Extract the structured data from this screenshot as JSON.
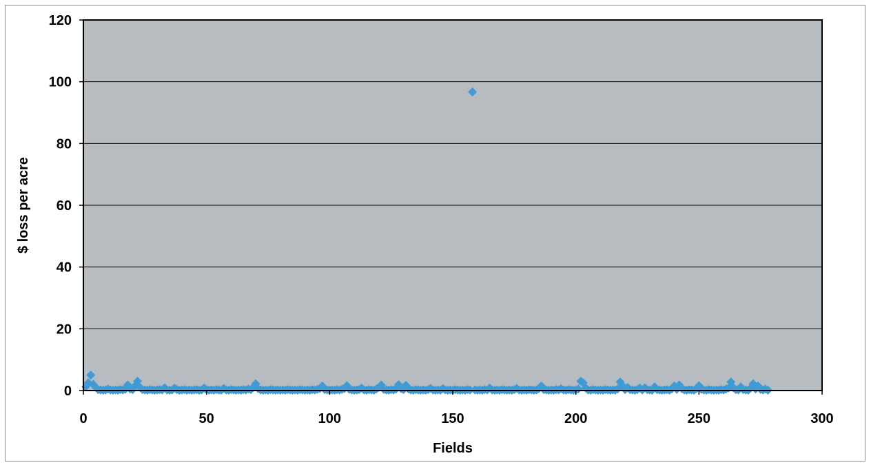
{
  "chart_data": {
    "type": "scatter",
    "title": "",
    "xlabel": "Fields",
    "ylabel": "$ loss per acre",
    "xlim": [
      0,
      300
    ],
    "ylim": [
      0,
      120
    ],
    "xticks": [
      0,
      50,
      100,
      150,
      200,
      250,
      300
    ],
    "yticks": [
      0,
      20,
      40,
      60,
      80,
      100,
      120
    ],
    "grid": "horizontal",
    "legend": "none",
    "plot_background": "#b7bcc0",
    "marker_color": "#3e9bd6",
    "marker": "diamond",
    "series": [
      {
        "points": [
          [
            1,
            1.2
          ],
          [
            2,
            2.5
          ],
          [
            3,
            5.0
          ],
          [
            4,
            2.0
          ],
          [
            5,
            1.0
          ],
          [
            6,
            0.3
          ],
          [
            7,
            0.2
          ],
          [
            8,
            0.1
          ],
          [
            9,
            0.2
          ],
          [
            10,
            0.5
          ],
          [
            11,
            0.2
          ],
          [
            12,
            0.1
          ],
          [
            13,
            0.2
          ],
          [
            14,
            0.1
          ],
          [
            15,
            0.3
          ],
          [
            16,
            0.2
          ],
          [
            17,
            0.4
          ],
          [
            18,
            1.8
          ],
          [
            19,
            0.5
          ],
          [
            20,
            0.3
          ],
          [
            21,
            1.5
          ],
          [
            22,
            3.0
          ],
          [
            23,
            1.0
          ],
          [
            24,
            0.3
          ],
          [
            25,
            0.2
          ],
          [
            26,
            0.1
          ],
          [
            27,
            0.3
          ],
          [
            28,
            0.2
          ],
          [
            29,
            0.1
          ],
          [
            30,
            0.2
          ],
          [
            31,
            0.3
          ],
          [
            32,
            0.2
          ],
          [
            33,
            0.9
          ],
          [
            34,
            0.2
          ],
          [
            35,
            0.1
          ],
          [
            36,
            0.2
          ],
          [
            37,
            0.8
          ],
          [
            38,
            0.3
          ],
          [
            39,
            0.1
          ],
          [
            40,
            0.2
          ],
          [
            41,
            0.3
          ],
          [
            42,
            0.1
          ],
          [
            43,
            0.2
          ],
          [
            44,
            0.1
          ],
          [
            45,
            0.2
          ],
          [
            46,
            0.3
          ],
          [
            47,
            0.1
          ],
          [
            48,
            0.2
          ],
          [
            49,
            0.8
          ],
          [
            50,
            0.3
          ],
          [
            51,
            0.1
          ],
          [
            52,
            0.2
          ],
          [
            53,
            0.1
          ],
          [
            54,
            0.3
          ],
          [
            55,
            0.2
          ],
          [
            56,
            0.1
          ],
          [
            57,
            0.7
          ],
          [
            58,
            0.2
          ],
          [
            59,
            0.1
          ],
          [
            60,
            0.3
          ],
          [
            61,
            0.2
          ],
          [
            62,
            0.1
          ],
          [
            63,
            0.2
          ],
          [
            64,
            0.1
          ],
          [
            65,
            0.3
          ],
          [
            66,
            0.2
          ],
          [
            67,
            0.5
          ],
          [
            68,
            0.3
          ],
          [
            69,
            1.0
          ],
          [
            70,
            2.2
          ],
          [
            71,
            0.6
          ],
          [
            72,
            0.2
          ],
          [
            73,
            0.1
          ],
          [
            74,
            0.2
          ],
          [
            75,
            0.1
          ],
          [
            76,
            0.3
          ],
          [
            77,
            0.2
          ],
          [
            78,
            0.1
          ],
          [
            79,
            0.2
          ],
          [
            80,
            0.1
          ],
          [
            81,
            0.2
          ],
          [
            82,
            0.1
          ],
          [
            83,
            0.3
          ],
          [
            84,
            0.2
          ],
          [
            85,
            0.1
          ],
          [
            86,
            0.2
          ],
          [
            87,
            0.1
          ],
          [
            88,
            0.3
          ],
          [
            89,
            0.2
          ],
          [
            90,
            0.1
          ],
          [
            91,
            0.2
          ],
          [
            92,
            0.1
          ],
          [
            93,
            0.3
          ],
          [
            94,
            0.2
          ],
          [
            95,
            0.4
          ],
          [
            96,
            0.6
          ],
          [
            97,
            1.5
          ],
          [
            98,
            0.3
          ],
          [
            99,
            0.2
          ],
          [
            100,
            0.1
          ],
          [
            101,
            0.2
          ],
          [
            102,
            0.1
          ],
          [
            103,
            0.3
          ],
          [
            104,
            0.2
          ],
          [
            105,
            0.4
          ],
          [
            106,
            0.6
          ],
          [
            107,
            1.6
          ],
          [
            108,
            0.4
          ],
          [
            109,
            0.2
          ],
          [
            110,
            0.1
          ],
          [
            111,
            0.2
          ],
          [
            112,
            0.3
          ],
          [
            113,
            0.8
          ],
          [
            114,
            0.2
          ],
          [
            115,
            0.1
          ],
          [
            116,
            0.3
          ],
          [
            117,
            0.2
          ],
          [
            118,
            0.1
          ],
          [
            119,
            0.5
          ],
          [
            120,
            1.0
          ],
          [
            121,
            1.8
          ],
          [
            122,
            0.4
          ],
          [
            123,
            0.2
          ],
          [
            124,
            0.1
          ],
          [
            125,
            0.3
          ],
          [
            126,
            0.2
          ],
          [
            127,
            0.5
          ],
          [
            128,
            1.9
          ],
          [
            129,
            0.6
          ],
          [
            130,
            0.3
          ],
          [
            131,
            1.7
          ],
          [
            132,
            0.5
          ],
          [
            133,
            0.2
          ],
          [
            134,
            0.1
          ],
          [
            135,
            0.3
          ],
          [
            136,
            0.2
          ],
          [
            137,
            0.1
          ],
          [
            138,
            0.2
          ],
          [
            139,
            0.1
          ],
          [
            140,
            0.3
          ],
          [
            141,
            0.7
          ],
          [
            142,
            0.2
          ],
          [
            143,
            0.1
          ],
          [
            144,
            0.2
          ],
          [
            145,
            0.1
          ],
          [
            146,
            0.6
          ],
          [
            147,
            0.2
          ],
          [
            148,
            0.1
          ],
          [
            149,
            0.2
          ],
          [
            150,
            0.1
          ],
          [
            151,
            0.3
          ],
          [
            152,
            0.2
          ],
          [
            153,
            0.1
          ],
          [
            154,
            0.2
          ],
          [
            155,
            0.1
          ],
          [
            156,
            0.3
          ],
          [
            157,
            0.2
          ],
          [
            158,
            96.7
          ],
          [
            159,
            0.2
          ],
          [
            160,
            0.1
          ],
          [
            161,
            0.2
          ],
          [
            162,
            0.1
          ],
          [
            163,
            0.3
          ],
          [
            164,
            0.2
          ],
          [
            165,
            0.8
          ],
          [
            166,
            0.2
          ],
          [
            167,
            0.1
          ],
          [
            168,
            0.2
          ],
          [
            169,
            0.1
          ],
          [
            170,
            0.3
          ],
          [
            171,
            0.2
          ],
          [
            172,
            0.1
          ],
          [
            173,
            0.2
          ],
          [
            174,
            0.1
          ],
          [
            175,
            0.3
          ],
          [
            176,
            0.7
          ],
          [
            177,
            0.2
          ],
          [
            178,
            0.1
          ],
          [
            179,
            0.2
          ],
          [
            180,
            0.1
          ],
          [
            181,
            0.3
          ],
          [
            182,
            0.2
          ],
          [
            183,
            0.1
          ],
          [
            184,
            0.2
          ],
          [
            185,
            0.6
          ],
          [
            186,
            1.5
          ],
          [
            187,
            0.3
          ],
          [
            188,
            0.2
          ],
          [
            189,
            0.1
          ],
          [
            190,
            0.2
          ],
          [
            191,
            0.1
          ],
          [
            192,
            0.3
          ],
          [
            193,
            0.2
          ],
          [
            194,
            0.6
          ],
          [
            195,
            0.2
          ],
          [
            196,
            0.1
          ],
          [
            197,
            0.3
          ],
          [
            198,
            0.2
          ],
          [
            199,
            0.1
          ],
          [
            200,
            0.2
          ],
          [
            201,
            0.5
          ],
          [
            202,
            3.0
          ],
          [
            203,
            2.5
          ],
          [
            204,
            0.8
          ],
          [
            205,
            0.2
          ],
          [
            206,
            0.1
          ],
          [
            207,
            0.3
          ],
          [
            208,
            0.2
          ],
          [
            209,
            0.1
          ],
          [
            210,
            0.2
          ],
          [
            211,
            0.1
          ],
          [
            212,
            0.3
          ],
          [
            213,
            0.2
          ],
          [
            214,
            0.1
          ],
          [
            215,
            0.2
          ],
          [
            216,
            0.1
          ],
          [
            217,
            0.5
          ],
          [
            218,
            2.8
          ],
          [
            219,
            1.5
          ],
          [
            220,
            0.3
          ],
          [
            221,
            1.0
          ],
          [
            222,
            0.3
          ],
          [
            223,
            0.2
          ],
          [
            224,
            0.1
          ],
          [
            225,
            0.3
          ],
          [
            226,
            0.8
          ],
          [
            227,
            0.2
          ],
          [
            228,
            0.9
          ],
          [
            229,
            0.3
          ],
          [
            230,
            0.2
          ],
          [
            231,
            0.1
          ],
          [
            232,
            1.2
          ],
          [
            233,
            0.3
          ],
          [
            234,
            0.2
          ],
          [
            235,
            0.1
          ],
          [
            236,
            0.2
          ],
          [
            237,
            0.3
          ],
          [
            238,
            0.1
          ],
          [
            239,
            0.5
          ],
          [
            240,
            1.5
          ],
          [
            241,
            0.4
          ],
          [
            242,
            1.8
          ],
          [
            243,
            0.6
          ],
          [
            244,
            0.2
          ],
          [
            245,
            0.1
          ],
          [
            246,
            0.3
          ],
          [
            247,
            0.2
          ],
          [
            248,
            0.1
          ],
          [
            249,
            0.6
          ],
          [
            250,
            1.6
          ],
          [
            251,
            0.4
          ],
          [
            252,
            0.2
          ],
          [
            253,
            0.1
          ],
          [
            254,
            0.3
          ],
          [
            255,
            0.2
          ],
          [
            256,
            0.1
          ],
          [
            257,
            0.2
          ],
          [
            258,
            0.1
          ],
          [
            259,
            0.3
          ],
          [
            260,
            0.2
          ],
          [
            261,
            0.5
          ],
          [
            262,
            0.8
          ],
          [
            263,
            2.8
          ],
          [
            264,
            0.9
          ],
          [
            265,
            0.3
          ],
          [
            266,
            0.2
          ],
          [
            267,
            1.2
          ],
          [
            268,
            0.3
          ],
          [
            269,
            0.2
          ],
          [
            270,
            0.1
          ],
          [
            271,
            0.8
          ],
          [
            272,
            2.2
          ],
          [
            273,
            0.5
          ],
          [
            274,
            1.5
          ],
          [
            275,
            0.4
          ],
          [
            276,
            0.2
          ],
          [
            277,
            0.5
          ],
          [
            278,
            0.1
          ]
        ]
      }
    ]
  }
}
